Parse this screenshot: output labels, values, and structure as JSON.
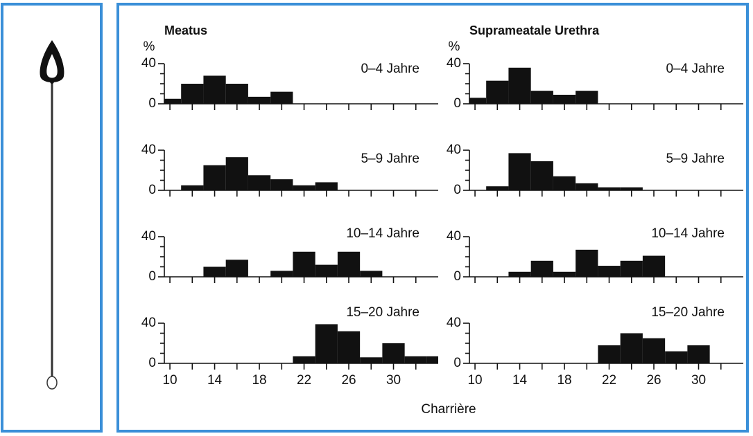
{
  "xlabel": "Charrière",
  "chart_data": [
    {
      "type": "histogram",
      "title": "Meatus",
      "ylabel": "%",
      "label": "0–4 Jahre",
      "color": "#111111",
      "bins": [
        9.5,
        11,
        13,
        15,
        17,
        19,
        21,
        23,
        25,
        27,
        29,
        31,
        33,
        34
      ],
      "values": [
        5,
        20,
        28,
        20,
        7,
        12,
        0,
        0,
        0,
        0,
        0,
        0,
        0
      ],
      "xlim": [
        9.5,
        34
      ],
      "xticks": [
        10,
        12,
        14,
        16,
        18,
        20,
        22,
        24,
        26,
        28,
        30,
        32
      ],
      "show_xtick_labels": false,
      "ylim": [
        0,
        40
      ],
      "yticks": [
        0,
        40
      ],
      "yminor": [
        10,
        20,
        30
      ]
    },
    {
      "type": "histogram",
      "title": "Suprameatale Urethra",
      "ylabel": "%",
      "label": "0–4 Jahre",
      "color": "#111111",
      "bins": [
        9.5,
        11,
        13,
        15,
        17,
        19,
        21,
        23,
        25,
        27,
        29,
        31,
        33,
        34
      ],
      "values": [
        6,
        23,
        36,
        13,
        9,
        13,
        0,
        0,
        0,
        0,
        0,
        0,
        0
      ],
      "xlim": [
        9.5,
        34
      ],
      "xticks": [
        10,
        12,
        14,
        16,
        18,
        20,
        22,
        24,
        26,
        28,
        30,
        32
      ],
      "show_xtick_labels": false,
      "ylim": [
        0,
        40
      ],
      "yticks": [
        0,
        40
      ],
      "yminor": [
        10,
        20,
        30
      ]
    },
    {
      "type": "histogram",
      "label": "5–9 Jahre",
      "color": "#111111",
      "bins": [
        9.5,
        11,
        13,
        15,
        17,
        19,
        21,
        23,
        25,
        27,
        29,
        31,
        33,
        34
      ],
      "values": [
        0,
        5,
        25,
        33,
        15,
        11,
        5,
        8,
        0,
        0,
        0,
        0,
        0
      ],
      "xlim": [
        9.5,
        34
      ],
      "xticks": [
        10,
        12,
        14,
        16,
        18,
        20,
        22,
        24,
        26,
        28,
        30,
        32
      ],
      "show_xtick_labels": false,
      "ylim": [
        0,
        40
      ],
      "yticks": [
        0,
        40
      ],
      "yminor": [
        10,
        20,
        30
      ]
    },
    {
      "type": "histogram",
      "label": "5–9 Jahre",
      "color": "#111111",
      "bins": [
        9.5,
        11,
        13,
        15,
        17,
        19,
        21,
        23,
        25,
        27,
        29,
        31,
        33,
        34
      ],
      "values": [
        0,
        4,
        37,
        29,
        14,
        7,
        3,
        3,
        0,
        0,
        0,
        0,
        0
      ],
      "xlim": [
        9.5,
        34
      ],
      "xticks": [
        10,
        12,
        14,
        16,
        18,
        20,
        22,
        24,
        26,
        28,
        30,
        32
      ],
      "show_xtick_labels": false,
      "ylim": [
        0,
        40
      ],
      "yticks": [
        0,
        40
      ],
      "yminor": [
        10,
        20,
        30
      ]
    },
    {
      "type": "histogram",
      "label": "10–14 Jahre",
      "color": "#111111",
      "bins": [
        9.5,
        11,
        13,
        15,
        17,
        19,
        21,
        23,
        25,
        27,
        29,
        31,
        33,
        34
      ],
      "values": [
        0,
        0,
        10,
        17,
        0,
        6,
        25,
        12,
        25,
        6,
        0,
        0,
        0
      ],
      "xlim": [
        9.5,
        34
      ],
      "xticks": [
        10,
        12,
        14,
        16,
        18,
        20,
        22,
        24,
        26,
        28,
        30,
        32
      ],
      "show_xtick_labels": false,
      "ylim": [
        0,
        40
      ],
      "yticks": [
        0,
        40
      ],
      "yminor": [
        10,
        20,
        30
      ]
    },
    {
      "type": "histogram",
      "label": "10–14 Jahre",
      "color": "#111111",
      "bins": [
        9.5,
        11,
        13,
        15,
        17,
        19,
        21,
        23,
        25,
        27,
        29,
        31,
        33,
        34
      ],
      "values": [
        0,
        0,
        5,
        16,
        5,
        27,
        11,
        16,
        21,
        0,
        0,
        0,
        0
      ],
      "xlim": [
        9.5,
        34
      ],
      "xticks": [
        10,
        12,
        14,
        16,
        18,
        20,
        22,
        24,
        26,
        28,
        30,
        32
      ],
      "show_xtick_labels": false,
      "ylim": [
        0,
        40
      ],
      "yticks": [
        0,
        40
      ],
      "yminor": [
        10,
        20,
        30
      ]
    },
    {
      "type": "histogram",
      "label": "15–20 Jahre",
      "color": "#111111",
      "bins": [
        9.5,
        11,
        13,
        15,
        17,
        19,
        21,
        23,
        25,
        27,
        29,
        31,
        33,
        34
      ],
      "values": [
        0,
        0,
        0,
        0,
        0,
        0,
        7,
        39,
        32,
        6,
        20,
        7,
        7
      ],
      "xlim": [
        9.5,
        34
      ],
      "xticks": [
        10,
        12,
        14,
        16,
        18,
        20,
        22,
        24,
        26,
        28,
        30,
        32
      ],
      "show_xtick_labels": true,
      "ylim": [
        0,
        40
      ],
      "yticks": [
        0,
        40
      ],
      "yminor": [
        10,
        20,
        30
      ]
    },
    {
      "type": "histogram",
      "label": "15–20 Jahre",
      "color": "#111111",
      "bins": [
        9.5,
        11,
        13,
        15,
        17,
        19,
        21,
        23,
        25,
        27,
        29,
        31,
        33,
        34
      ],
      "values": [
        0,
        0,
        0,
        0,
        0,
        0,
        18,
        30,
        25,
        12,
        18,
        0,
        0
      ],
      "xlim": [
        9.5,
        34
      ],
      "xticks": [
        10,
        12,
        14,
        16,
        18,
        20,
        22,
        24,
        26,
        28,
        30,
        32
      ],
      "show_xtick_labels": true,
      "ylim": [
        0,
        40
      ],
      "yticks": [
        0,
        40
      ],
      "yminor": [
        10,
        20,
        30
      ]
    }
  ]
}
